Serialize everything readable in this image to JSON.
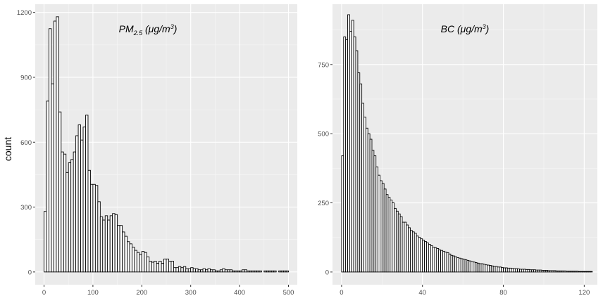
{
  "y_axis_label": "count",
  "chart_data": [
    {
      "type": "bar",
      "title": "PM2.5 (μg/m3)",
      "title_parts": {
        "main": "PM",
        "sub": "2.5",
        "unit_open": " (μg/m",
        "unit_sup": "3",
        "unit_close": ")"
      },
      "xlabel": "",
      "ylabel": "count",
      "xlim": [
        -18,
        518
      ],
      "ylim": [
        -59,
        1238
      ],
      "grid": true,
      "x_ticks": [
        0,
        100,
        200,
        300,
        400,
        500
      ],
      "y_ticks": [
        0,
        300,
        600,
        900,
        1200
      ],
      "bin_width": 5,
      "bin_starts": [
        0,
        5,
        10,
        15,
        20,
        25,
        30,
        35,
        40,
        45,
        50,
        55,
        60,
        65,
        70,
        75,
        80,
        85,
        90,
        95,
        100,
        105,
        110,
        115,
        120,
        125,
        130,
        135,
        140,
        145,
        150,
        155,
        160,
        165,
        170,
        175,
        180,
        185,
        190,
        195,
        200,
        205,
        210,
        215,
        220,
        225,
        230,
        235,
        240,
        245,
        250,
        255,
        260,
        265,
        270,
        275,
        280,
        285,
        290,
        295,
        300,
        305,
        310,
        315,
        320,
        325,
        330,
        335,
        340,
        345,
        350,
        355,
        360,
        365,
        370,
        375,
        380,
        385,
        390,
        395,
        400,
        405,
        410,
        415,
        420,
        425,
        430,
        435,
        440,
        445,
        450,
        455,
        460,
        465,
        470,
        475,
        480,
        485,
        490,
        495
      ],
      "values": [
        280,
        790,
        1125,
        870,
        1160,
        1180,
        740,
        555,
        545,
        460,
        505,
        520,
        555,
        630,
        680,
        610,
        670,
        725,
        470,
        405,
        405,
        400,
        325,
        255,
        240,
        260,
        240,
        260,
        270,
        265,
        215,
        215,
        185,
        165,
        140,
        130,
        115,
        100,
        90,
        80,
        95,
        90,
        70,
        50,
        45,
        50,
        40,
        50,
        40,
        60,
        60,
        50,
        50,
        20,
        20,
        25,
        20,
        25,
        15,
        15,
        20,
        15,
        15,
        10,
        10,
        15,
        10,
        15,
        10,
        10,
        5,
        5,
        10,
        15,
        10,
        10,
        10,
        5,
        5,
        5,
        5,
        10,
        10,
        5,
        5,
        5,
        5,
        5,
        5,
        0,
        5,
        5,
        5,
        5,
        5,
        0,
        5,
        5,
        5,
        5
      ]
    },
    {
      "type": "bar",
      "title": "BC (μg/m3)",
      "title_parts": {
        "main": "BC",
        "sub": "",
        "unit_open": " (μg/m",
        "unit_sup": "3",
        "unit_close": ")"
      },
      "xlabel": "",
      "ylabel": "",
      "xlim": [
        -4.5,
        126.5
      ],
      "ylim": [
        -46,
        968
      ],
      "grid": true,
      "x_ticks": [
        0,
        40,
        80,
        120
      ],
      "y_ticks": [
        0,
        250,
        500,
        750
      ],
      "bin_width": 1,
      "bin_starts": [
        0,
        1,
        2,
        3,
        4,
        5,
        6,
        7,
        8,
        9,
        10,
        11,
        12,
        13,
        14,
        15,
        16,
        17,
        18,
        19,
        20,
        21,
        22,
        23,
        24,
        25,
        26,
        27,
        28,
        29,
        30,
        31,
        32,
        33,
        34,
        35,
        36,
        37,
        38,
        39,
        40,
        41,
        42,
        43,
        44,
        45,
        46,
        47,
        48,
        49,
        50,
        51,
        52,
        53,
        54,
        55,
        56,
        57,
        58,
        59,
        60,
        61,
        62,
        63,
        64,
        65,
        66,
        67,
        68,
        69,
        70,
        71,
        72,
        73,
        74,
        75,
        76,
        77,
        78,
        79,
        80,
        81,
        82,
        83,
        84,
        85,
        86,
        87,
        88,
        89,
        90,
        91,
        92,
        93,
        94,
        95,
        96,
        97,
        98,
        99,
        100,
        101,
        102,
        103,
        104,
        105,
        106,
        107,
        108,
        109,
        110,
        111,
        112,
        113,
        114,
        115,
        116,
        117,
        118,
        119,
        120,
        121,
        122,
        123
      ],
      "values": [
        420,
        850,
        840,
        930,
        870,
        910,
        850,
        800,
        720,
        680,
        610,
        560,
        520,
        500,
        480,
        440,
        420,
        380,
        350,
        330,
        320,
        300,
        280,
        270,
        260,
        250,
        230,
        220,
        210,
        200,
        180,
        180,
        170,
        160,
        150,
        145,
        140,
        130,
        125,
        120,
        115,
        110,
        105,
        100,
        95,
        90,
        88,
        85,
        80,
        78,
        75,
        72,
        70,
        65,
        60,
        58,
        55,
        52,
        50,
        48,
        46,
        44,
        42,
        40,
        38,
        36,
        34,
        32,
        30,
        30,
        28,
        26,
        25,
        24,
        22,
        20,
        20,
        18,
        18,
        16,
        15,
        15,
        14,
        14,
        13,
        12,
        12,
        11,
        10,
        10,
        10,
        9,
        9,
        8,
        8,
        8,
        7,
        7,
        7,
        6,
        6,
        6,
        5,
        5,
        5,
        5,
        4,
        4,
        4,
        4,
        4,
        3,
        3,
        3,
        3,
        3,
        3,
        2,
        2,
        2,
        2,
        2,
        2,
        2
      ]
    }
  ]
}
